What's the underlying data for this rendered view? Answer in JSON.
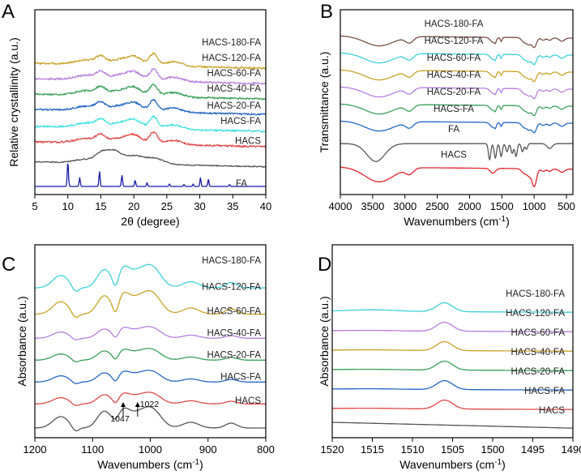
{
  "chart_data": [
    {
      "panel": "A",
      "type": "line",
      "xlabel": "2θ (degree)",
      "ylabel": "Relative crystallinity (a.u.)",
      "xlim": [
        5,
        40
      ],
      "xticks": [
        5,
        10,
        15,
        20,
        25,
        30,
        35,
        40
      ],
      "series": [
        {
          "name": "HACS-180-FA",
          "color": "#c9a227",
          "offset": 8.0
        },
        {
          "name": "HACS-120-FA",
          "color": "#b77fe0",
          "offset": 7.0
        },
        {
          "name": "HACS-60-FA",
          "color": "#3aa05a",
          "offset": 6.0
        },
        {
          "name": "HACS-40-FA",
          "color": "#2468c4",
          "offset": 5.0
        },
        {
          "name": "HACS-20-FA",
          "color": "#3fe0e0",
          "offset": 3.9
        },
        {
          "name": "HACS-FA",
          "color": "#e0484a",
          "offset": 2.9
        },
        {
          "name": "HACS",
          "color": "#555555",
          "offset": 1.6
        },
        {
          "name": "FA",
          "color": "#1a1aa8",
          "offset": 0.0
        }
      ]
    },
    {
      "panel": "B",
      "type": "line",
      "xlabel": "Wavenumbers (cm",
      "xlabel_sup": "-1",
      "xlabel_end": ")",
      "ylabel": "Transmittance (a.u.)",
      "xlim": [
        4000,
        400
      ],
      "xticks": [
        4000,
        3500,
        3000,
        2500,
        2000,
        1500,
        1000,
        500
      ],
      "series": [
        {
          "name": "HACS-180-FA",
          "color": "#7a5048",
          "offset": 8.0
        },
        {
          "name": "HACS-120-FA",
          "color": "#3fd0d8",
          "offset": 7.0
        },
        {
          "name": "HACS-60-FA",
          "color": "#c9a227",
          "offset": 6.0
        },
        {
          "name": "HACS-40-FA",
          "color": "#b77fe0",
          "offset": 5.0
        },
        {
          "name": "HACS-20-FA",
          "color": "#3aa05a",
          "offset": 4.0
        },
        {
          "name": "HACS-FA",
          "color": "#2468c4",
          "offset": 3.0
        },
        {
          "name": "FA",
          "color": "#555555",
          "offset": 1.8
        },
        {
          "name": "HACS",
          "color": "#e0222a",
          "offset": 0.3
        }
      ]
    },
    {
      "panel": "C",
      "type": "line",
      "xlabel": "Wavenumbers (cm",
      "xlabel_sup": "-1",
      "xlabel_end": ")",
      "ylabel": "Absorbance (a.u.)",
      "xlim": [
        1200,
        800
      ],
      "xticks": [
        1200,
        1100,
        1000,
        900,
        800
      ],
      "annotations": [
        "1047",
        "1022"
      ],
      "series": [
        {
          "name": "HACS-180-FA",
          "color": "#3fd0d8",
          "offset": 6.4
        },
        {
          "name": "HACS-120-FA",
          "color": "#c9a227",
          "offset": 5.2
        },
        {
          "name": "HACS-60-FA",
          "color": "#b77fe0",
          "offset": 4.1
        },
        {
          "name": "HACS-40-FA",
          "color": "#3aa05a",
          "offset": 3.1
        },
        {
          "name": "HACS-20-FA",
          "color": "#2468c4",
          "offset": 2.1
        },
        {
          "name": "HACS-FA",
          "color": "#e0484a",
          "offset": 1.1
        },
        {
          "name": "HACS",
          "color": "#555555",
          "offset": 0.0
        }
      ]
    },
    {
      "panel": "D",
      "type": "line",
      "xlabel": "Wavenumbers (cm",
      "xlabel_sup": "-1",
      "xlabel_end": ")",
      "ylabel": "Absorbance (a.u.)",
      "xlim": [
        1520,
        1490
      ],
      "xticks": [
        1520,
        1515,
        1510,
        1505,
        1500,
        1495,
        1490
      ],
      "series": [
        {
          "name": "HACS-180-FA",
          "color": "#3fd0d8",
          "offset": 6.0
        },
        {
          "name": "HACS-120-FA",
          "color": "#b77fe0",
          "offset": 5.0
        },
        {
          "name": "HACS-60-FA",
          "color": "#c9a227",
          "offset": 4.0
        },
        {
          "name": "HACS-40-FA",
          "color": "#3aa05a",
          "offset": 3.0
        },
        {
          "name": "HACS-20-FA",
          "color": "#2468c4",
          "offset": 2.0
        },
        {
          "name": "HACS-FA",
          "color": "#e0484a",
          "offset": 1.0
        },
        {
          "name": "HACS",
          "color": "#555555",
          "offset": 0.0
        }
      ]
    }
  ]
}
